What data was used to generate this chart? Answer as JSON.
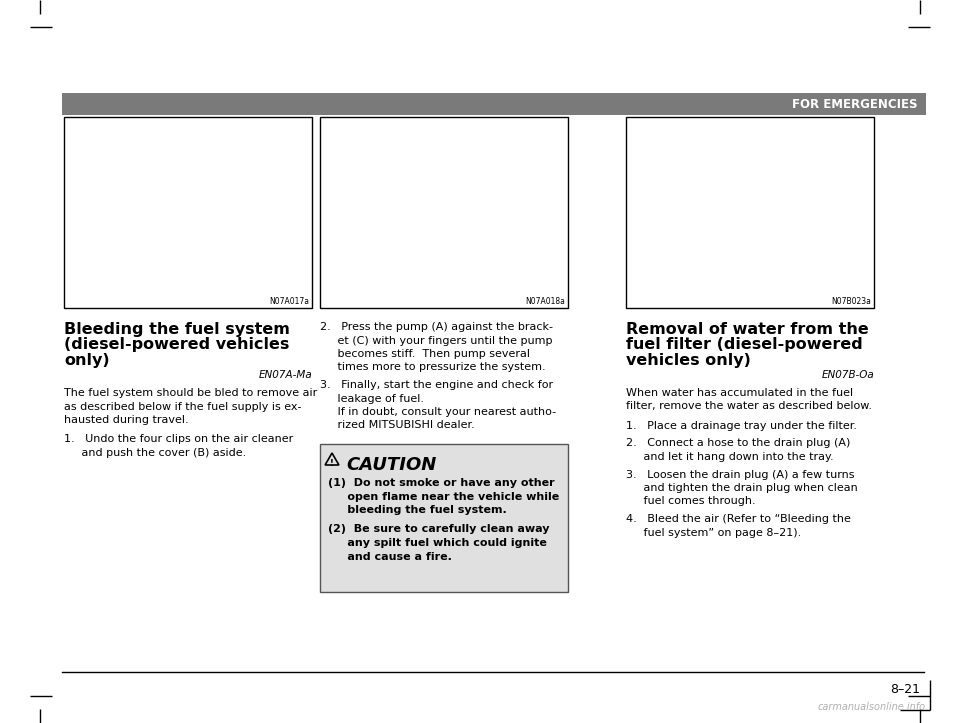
{
  "bg_color": "#ffffff",
  "header_bar_color": "#7a7a7a",
  "header_text": "FOR EMERGENCIES",
  "header_text_color": "#ffffff",
  "page_number": "8–21",
  "watermark": "carmanualsonline.info",
  "col1_heading_line1": "Bleeding the fuel system",
  "col1_heading_line2": "(diesel-powered vehicles",
  "col1_heading_line3": "only)",
  "col1_ref": "EN07A-Ma",
  "col1_intro_line1": "The fuel system should be bled to remove air",
  "col1_intro_line2": "as described below if the fuel supply is ex-",
  "col1_intro_line3": "hausted during travel.",
  "col1_item1_line1": "1.   Undo the four clips on the air cleaner",
  "col1_item1_line2": "     and push the cover (B) aside.",
  "col1_img_label": "N07A017a",
  "col2_item2_line1": "2.   Press the pump (A) against the brack-",
  "col2_item2_line2": "     et (C) with your fingers until the pump",
  "col2_item2_line3": "     becomes stiff.  Then pump several",
  "col2_item2_line4": "     times more to pressurize the system.",
  "col2_item3_line1": "3.   Finally, start the engine and check for",
  "col2_item3_line2": "     leakage of fuel.",
  "col2_item3_line3": "     If in doubt, consult your nearest autho-",
  "col2_item3_line4": "     rized MITSUBISHI dealer.",
  "col2_img_label": "N07A018a",
  "caution_title": "CAUTION",
  "caution_1a": "(1)  Do not smoke or have any other",
  "caution_1b": "     open flame near the vehicle while",
  "caution_1c": "     bleeding the fuel system.",
  "caution_2a": "(2)  Be sure to carefully clean away",
  "caution_2b": "     any spilt fuel which could ignite",
  "caution_2c": "     and cause a fire.",
  "col3_heading_line1": "Removal of water from the",
  "col3_heading_line2": "fuel filter (diesel-powered",
  "col3_heading_line3": "vehicles only)",
  "col3_ref": "EN07B-Oa",
  "col3_intro_line1": "When water has accumulated in the fuel",
  "col3_intro_line2": "filter, remove the water as described below.",
  "col3_item1": "1.   Place a drainage tray under the filter.",
  "col3_item2a": "2.   Connect a hose to the drain plug (A)",
  "col3_item2b": "     and let it hang down into the tray.",
  "col3_item3a": "3.   Loosen the drain plug (A) a few turns",
  "col3_item3b": "     and tighten the drain plug when clean",
  "col3_item3c": "     fuel comes through.",
  "col3_item4a": "4.   Bleed the air (Refer to “Bleeding the",
  "col3_item4b": "     fuel system” on page 8–21).",
  "col3_img_label": "N07B023a",
  "caution_bg": "#e0e0e0",
  "caution_border": "#555555",
  "img_box_color": "#ffffff"
}
